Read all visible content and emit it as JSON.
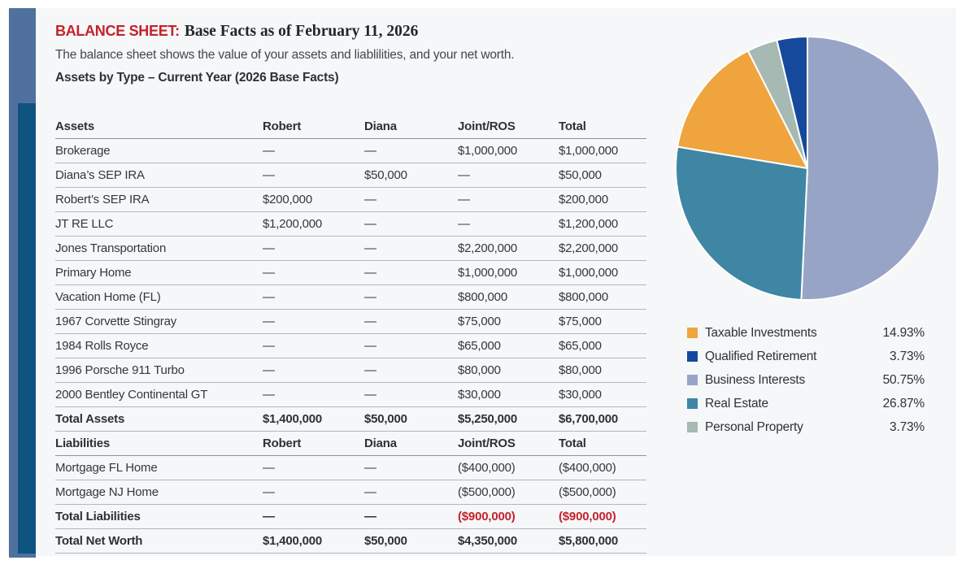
{
  "page": {
    "report_type_label": "BALANCE SHEET:",
    "report_title": "Base Facts as of February 11, 2026",
    "description": "The balance sheet shows the value of your assets and liablilities, and your net worth.",
    "section_subtitle": "Assets by Type – Current Year (2026 Base Facts)"
  },
  "table": {
    "rows": [
      {
        "style": "header",
        "cells": [
          "Assets",
          "Robert",
          "Diana",
          "Joint/ROS",
          "Total"
        ]
      },
      {
        "style": "row",
        "cells": [
          "Brokerage",
          "—",
          "—",
          "$1,000,000",
          "$1,000,000"
        ]
      },
      {
        "style": "row",
        "cells": [
          "Diana’s SEP IRA",
          "—",
          "$50,000",
          "—",
          "$50,000"
        ]
      },
      {
        "style": "row",
        "cells": [
          "Robert’s SEP IRA",
          "$200,000",
          "—",
          "—",
          "$200,000"
        ]
      },
      {
        "style": "row",
        "cells": [
          "JT RE LLC",
          "$1,200,000",
          "—",
          "—",
          "$1,200,000"
        ]
      },
      {
        "style": "row",
        "cells": [
          "Jones Transportation",
          "—",
          "—",
          "$2,200,000",
          "$2,200,000"
        ]
      },
      {
        "style": "row",
        "cells": [
          "Primary Home",
          "—",
          "—",
          "$1,000,000",
          "$1,000,000"
        ]
      },
      {
        "style": "row",
        "cells": [
          "Vacation Home (FL)",
          "—",
          "—",
          "$800,000",
          "$800,000"
        ]
      },
      {
        "style": "row",
        "cells": [
          "1967 Corvette Stingray",
          "—",
          "—",
          "$75,000",
          "$75,000"
        ]
      },
      {
        "style": "row",
        "cells": [
          "1984 Rolls Royce",
          "—",
          "—",
          "$65,000",
          "$65,000"
        ]
      },
      {
        "style": "row",
        "cells": [
          "1996 Porsche 911 Turbo",
          "—",
          "—",
          "$80,000",
          "$80,000"
        ]
      },
      {
        "style": "row",
        "cells": [
          "2000 Bentley Continental GT",
          "—",
          "—",
          "$30,000",
          "$30,000"
        ]
      },
      {
        "style": "total",
        "cells": [
          "Total Assets",
          "$1,400,000",
          "$50,000",
          "$5,250,000",
          "$6,700,000"
        ]
      },
      {
        "style": "header",
        "cells": [
          "Liabilities",
          "Robert",
          "Diana",
          "Joint/ROS",
          "Total"
        ]
      },
      {
        "style": "row",
        "cells": [
          "Mortgage FL Home",
          "—",
          "—",
          "($400,000)",
          "($400,000)"
        ]
      },
      {
        "style": "row",
        "cells": [
          "Mortgage NJ Home",
          "—",
          "—",
          "($500,000)",
          "($500,000)"
        ]
      },
      {
        "style": "total-neg",
        "cells": [
          "Total Liabilities",
          "—",
          "—",
          "($900,000)",
          "($900,000)"
        ]
      },
      {
        "style": "total",
        "cells": [
          "Total Net Worth",
          "$1,400,000",
          "$50,000",
          "$4,350,000",
          "$5,800,000"
        ]
      }
    ]
  },
  "chart_data": {
    "type": "pie",
    "title": "Assets by Type – Current Year (2026 Base Facts)",
    "slices": [
      {
        "label": "Taxable Investments",
        "value": 14.93,
        "pct_label": "14.93%",
        "color": "#efa43e"
      },
      {
        "label": "Qualified Retirement",
        "value": 3.73,
        "pct_label": "3.73%",
        "color": "#15499c"
      },
      {
        "label": "Business Interests",
        "value": 50.75,
        "pct_label": "50.75%",
        "color": "#98a4c6"
      },
      {
        "label": "Real Estate",
        "value": 26.87,
        "pct_label": "26.87%",
        "color": "#3e86a4"
      },
      {
        "label": "Personal Property",
        "value": 3.73,
        "pct_label": "3.73%",
        "color": "#a6b9b2"
      }
    ],
    "clockwise_order_from_top": [
      2,
      3,
      0,
      4,
      1
    ],
    "legend_position": "below-right",
    "slice_border_color": "#ffffff"
  },
  "colors": {
    "accent_red": "#c4222b",
    "negative_value": "#c4222b",
    "panel_background": "#f5f7f9",
    "sidebar_bar_light": "#50719e",
    "sidebar_bar_dark": "#0f5380"
  }
}
